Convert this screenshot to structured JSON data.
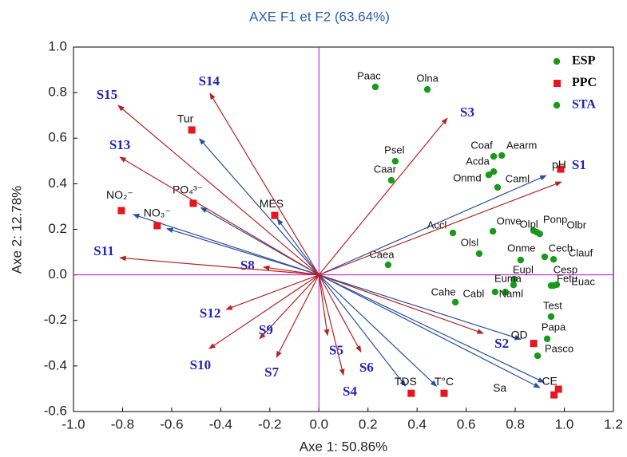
{
  "chart_data": {
    "type": "scatter",
    "title": "AXE F1 et F2 (63.64%)",
    "xlabel": "Axe 1: 50.86%",
    "ylabel": "Axe 2: 12.78%",
    "xlim": [
      -1.0,
      1.2
    ],
    "ylim": [
      -0.6,
      1.0
    ],
    "xticks": [
      {
        "value": -1.0,
        "label": "-1.0"
      },
      -0.8,
      -0.6,
      -0.4,
      -0.2,
      {
        "value": 0,
        "label": "0.0"
      },
      0.2,
      0.4,
      0.6,
      0.8,
      {
        "value": 1.0,
        "label": "1.0"
      },
      1.2
    ],
    "yticks": [
      {
        "value": 1.0,
        "label": "1.0"
      },
      0.8,
      0.6,
      0.4,
      0.2,
      {
        "value": 0,
        "label": "0.0"
      },
      -0.2,
      -0.4,
      -0.6
    ],
    "zero_lines_color": "#d000d0",
    "title_color": "#2a5db0",
    "series": [
      {
        "name": "ESP",
        "marker": "circle",
        "color": "#1a9a1a",
        "legend_text_color": "#000000",
        "labels": [
          "Paac",
          "Olna",
          "Psel",
          "Caar",
          "Coaf",
          "Aearm",
          "Acda",
          "Onmd",
          "Caml",
          "Accl",
          "Onve",
          "Olpl",
          "Ponp",
          "Olbr",
          "Olsl",
          "Onme",
          "Cech",
          "Clauf",
          "Eupl",
          "Cesp",
          "Fetu",
          "Euac",
          "Euma",
          "Naml",
          "Cabl",
          "Cahe",
          "Caea",
          "Test",
          "Papa",
          "Pasco"
        ],
        "x": [
          0.23,
          0.442,
          0.311,
          0.295,
          0.712,
          0.745,
          0.712,
          0.692,
          0.728,
          0.546,
          0.709,
          0.875,
          0.888,
          0.9,
          0.653,
          0.822,
          0.92,
          0.956,
          0.796,
          0.946,
          0.956,
          0.969,
          0.793,
          0.76,
          0.718,
          0.556,
          0.282,
          0.946,
          0.93,
          0.891
        ],
        "values": [
          0.825,
          0.814,
          0.499,
          0.415,
          0.52,
          0.524,
          0.453,
          0.439,
          0.384,
          0.184,
          0.191,
          0.194,
          0.187,
          0.18,
          0.093,
          0.065,
          0.079,
          0.068,
          -0.019,
          -0.047,
          -0.047,
          -0.043,
          -0.044,
          -0.075,
          -0.075,
          -0.12,
          0.044,
          -0.183,
          -0.281,
          -0.355
        ]
      },
      {
        "name": "PPC",
        "marker": "square",
        "color": "#e8141e",
        "legend_text_color": "#000000",
        "arrow_color": "#2b4f9e",
        "labels": [
          "Tur",
          "PO₄³⁻",
          "NO₂⁻",
          "NO₃⁻",
          "MES",
          "pH",
          "OD",
          "CE",
          "Sa",
          "TDS",
          "T°C"
        ],
        "x": [
          -0.518,
          -0.512,
          -0.805,
          -0.659,
          -0.18,
          0.985,
          0.875,
          0.976,
          0.958,
          0.376,
          0.51
        ],
        "values": [
          0.636,
          0.314,
          0.282,
          0.216,
          0.261,
          0.464,
          -0.301,
          -0.502,
          -0.527,
          -0.52,
          -0.52
        ]
      },
      {
        "name": "STA",
        "marker": "circle",
        "color": "#1a9a1a",
        "legend_text_color": "#2222bb",
        "arrow_color": "#b52323",
        "label_color": "#2222bb",
        "labels": [
          "S1",
          "S2",
          "S3",
          "S4",
          "S5",
          "S6",
          "S7",
          "S8",
          "S9",
          "S10",
          "S11",
          "S12",
          "S13",
          "S14",
          "S15"
        ],
        "x": [
          0.988,
          0.67,
          0.523,
          0.1,
          0.035,
          0.171,
          -0.173,
          -0.226,
          -0.242,
          -0.447,
          -0.811,
          -0.378,
          -0.811,
          -0.444,
          -0.818
        ],
        "values": [
          0.408,
          -0.257,
          0.688,
          -0.44,
          -0.266,
          -0.338,
          -0.362,
          0.034,
          -0.281,
          -0.324,
          0.075,
          -0.152,
          0.517,
          0.797,
          0.744
        ]
      }
    ]
  }
}
